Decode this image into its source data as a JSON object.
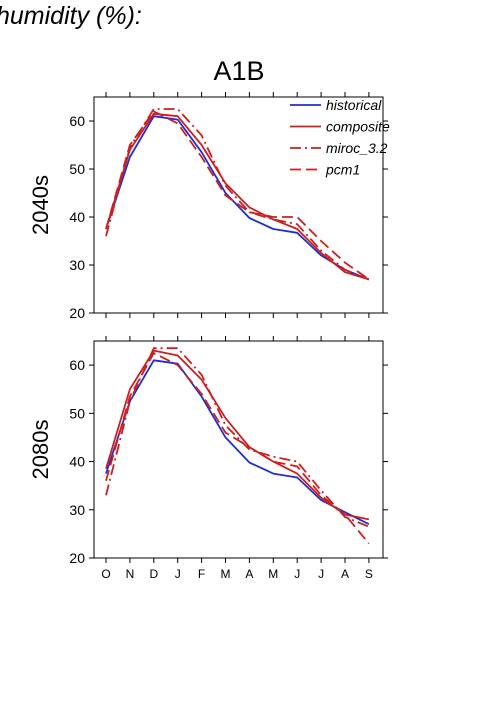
{
  "page": {
    "heading": "humidity (%):",
    "scenario": "A1B"
  },
  "colors": {
    "historical": "#1f2fd0",
    "red": "#cc1f1f"
  },
  "chart_data": {
    "type": "line",
    "categories": [
      "O",
      "N",
      "D",
      "J",
      "F",
      "M",
      "A",
      "M",
      "J",
      "J",
      "A",
      "S"
    ],
    "ylim": [
      20,
      65
    ],
    "yticks": [
      20,
      30,
      40,
      50,
      60
    ],
    "legend": {
      "placement": "top-right",
      "panel": "2040s"
    },
    "panels": [
      {
        "label": "2040s",
        "series": [
          {
            "name": "historical",
            "style": "solid",
            "color": "#1f2fd0",
            "values": [
              37.5,
              52.5,
              61,
              60.3,
              53.5,
              45,
              39.8,
              37.5,
              36.7,
              32,
              29,
              27
            ]
          },
          {
            "name": "composite",
            "style": "solid",
            "color": "#cc1f1f",
            "values": [
              37.5,
              54,
              61.5,
              61,
              55,
              47,
              42,
              39.5,
              37.5,
              32.5,
              28.5,
              27
            ]
          },
          {
            "name": "miroc_3.2",
            "style": "dashdot",
            "color": "#cc1f1f",
            "values": [
              36,
              54.5,
              62.5,
              62.5,
              57,
              46.5,
              41,
              39.5,
              38.5,
              33,
              29,
              27
            ]
          },
          {
            "name": "pcm1",
            "style": "dashed",
            "color": "#cc1f1f",
            "values": [
              37.5,
              55,
              62,
              59.5,
              52.5,
              44.5,
              41,
              40,
              40,
              35,
              30.5,
              27
            ]
          }
        ]
      },
      {
        "label": "2080s",
        "series": [
          {
            "name": "historical",
            "style": "solid",
            "color": "#1f2fd0",
            "values": [
              37.5,
              52.5,
              61,
              60.3,
              53.5,
              45,
              39.8,
              37.5,
              36.7,
              32,
              29.5,
              27
            ]
          },
          {
            "name": "composite",
            "style": "solid",
            "color": "#cc1f1f",
            "values": [
              38.5,
              55,
              63,
              62,
              57,
              49,
              43,
              40,
              37.5,
              32.5,
              29,
              28
            ]
          },
          {
            "name": "miroc_3.2",
            "style": "dashdot",
            "color": "#cc1f1f",
            "values": [
              33,
              52.5,
              63.5,
              63.5,
              58,
              47.5,
              42.5,
              41,
              40,
              34,
              28.5,
              26.5
            ]
          },
          {
            "name": "pcm1",
            "style": "dashed",
            "color": "#cc1f1f",
            "values": [
              36,
              53.5,
              62.5,
              60,
              54,
              46,
              43,
              40,
              39,
              33,
              29,
              23
            ]
          }
        ]
      }
    ]
  }
}
